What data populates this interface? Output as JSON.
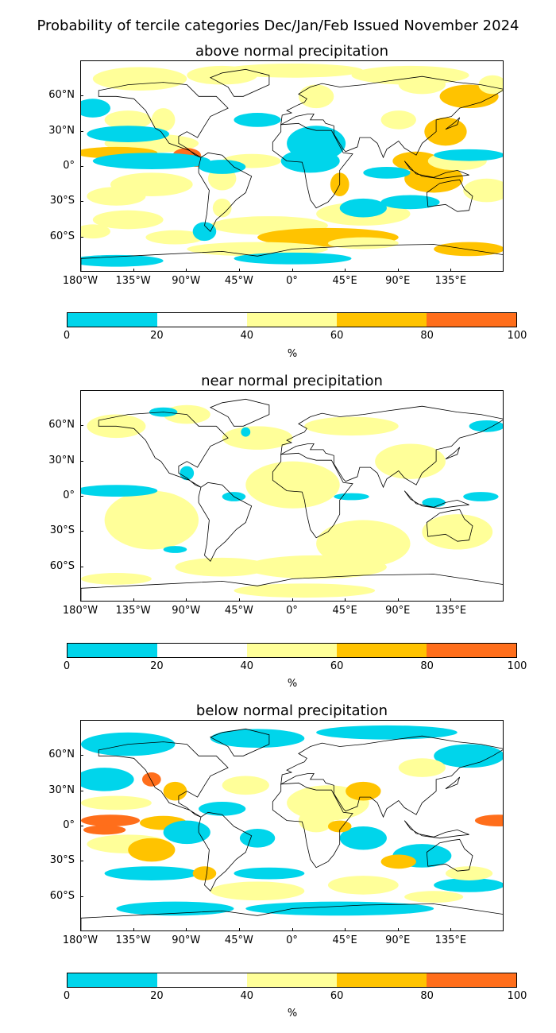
{
  "suptitle": "Probability of tercile categories Dec/Jan/Feb Issued November 2024",
  "panels": [
    {
      "title": "above normal precipitation"
    },
    {
      "title": "near normal precipitation"
    },
    {
      "title": "below normal precipitation"
    }
  ],
  "lat_labels": [
    "60°N",
    "30°N",
    "0°",
    "30°S",
    "60°S"
  ],
  "lon_labels": [
    "180°W",
    "135°W",
    "90°W",
    "45°W",
    "0°",
    "45°E",
    "90°E",
    "135°E"
  ],
  "colorbar": {
    "labels": [
      "0",
      "20",
      "40",
      "60",
      "80",
      "100"
    ],
    "unit": "%",
    "colors": [
      "#00d5eb",
      "#ffffff",
      "#ffff99",
      "#ffc300",
      "#ff6e1b"
    ]
  }
}
